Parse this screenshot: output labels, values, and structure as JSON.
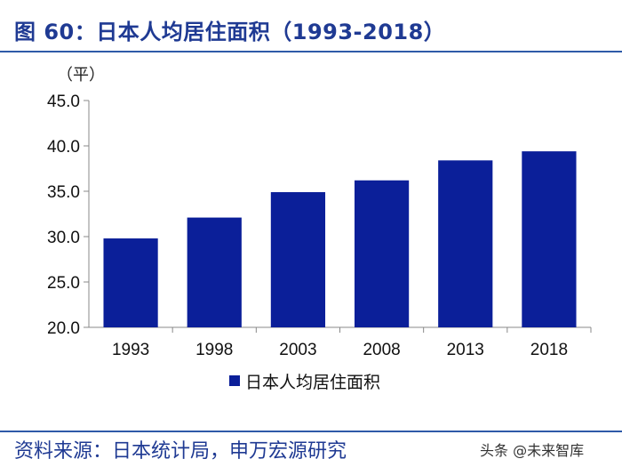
{
  "title": "图 60：日本人均居住面积（1993-2018）",
  "source": "资料来源：日本统计局，申万宏源研究",
  "watermark": "头条 @未来智库",
  "colors": {
    "bar": "#0b1f99",
    "title": "#1f3a93",
    "rule": "#2e5aa8"
  },
  "chart_data": {
    "type": "bar",
    "title": "",
    "unit_label": "（平）",
    "xlabel": "",
    "ylabel": "",
    "categories": [
      "1993",
      "1998",
      "2003",
      "2008",
      "2013",
      "2018"
    ],
    "series": [
      {
        "name": "日本人均居住面积",
        "values": [
          29.8,
          32.1,
          34.9,
          36.2,
          38.4,
          39.4
        ]
      }
    ],
    "ylim": [
      20.0,
      45.0
    ],
    "yticks": [
      "20.0",
      "25.0",
      "30.0",
      "35.0",
      "40.0",
      "45.0"
    ],
    "legend_position": "bottom-center",
    "grid": false
  }
}
